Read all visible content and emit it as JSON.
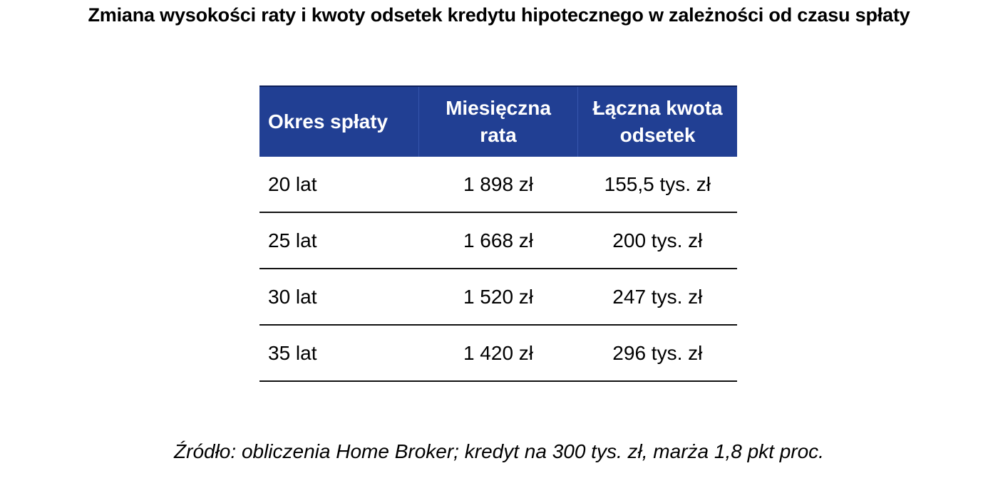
{
  "title": "Zmiana wysokości raty i kwoty odsetek kredytu hipotecznego w zależności od czasu spłaty",
  "source": "Źródło: obliczenia Home Broker; kredyt na 300 tys. zł, marża 1,8 pkt proc.",
  "colors": {
    "header_background": "#213f93",
    "header_text": "#ffffff",
    "row_separator": "#111111"
  },
  "chart_data": {
    "type": "table",
    "title": "Zmiana wysokości raty i kwoty odsetek kredytu hipotecznego w zależności od czasu spłaty",
    "columns": [
      "Okres spłaty",
      "Miesięczna rata",
      "Łączna kwota odsetek"
    ],
    "rows": [
      [
        "20 lat",
        "1 898 zł",
        "155,5 tys. zł"
      ],
      [
        "25 lat",
        "1 668 zł",
        "200 tys. zł"
      ],
      [
        "30 lat",
        "1 520 zł",
        "247 tys. zł"
      ],
      [
        "35 lat",
        "1 420 zł",
        "296 tys. zł"
      ]
    ],
    "header_lines": [
      [
        "Okres spłaty"
      ],
      [
        "Miesięczna",
        "rata"
      ],
      [
        "Łączna kwota",
        "odsetek"
      ]
    ],
    "source": "Źródło: obliczenia Home Broker; kredyt na 300 tys. zł, marża 1,8 pkt proc."
  }
}
